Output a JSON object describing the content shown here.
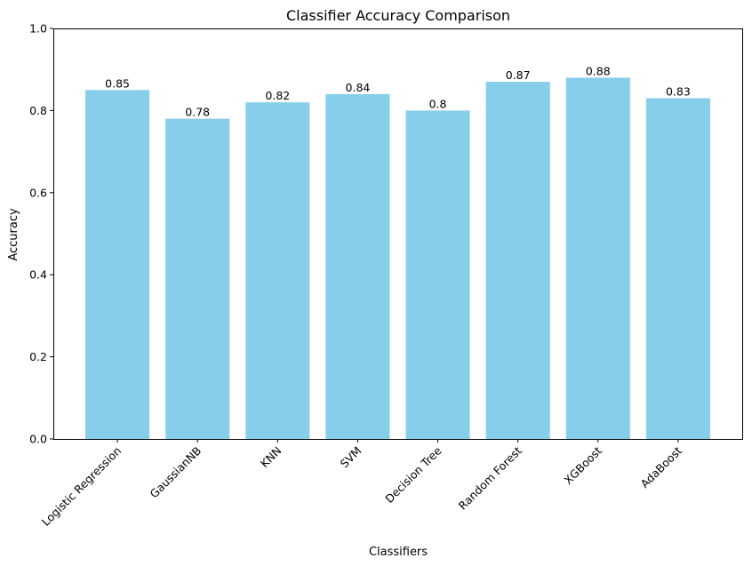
{
  "chart_data": {
    "type": "bar",
    "title": "Classifier Accuracy Comparison",
    "xlabel": "Classifiers",
    "ylabel": "Accuracy",
    "categories": [
      "Logistic Regression",
      "GaussianNB",
      "KNN",
      "SVM",
      "Decision Tree",
      "Random Forest",
      "XGBoost",
      "AdaBoost"
    ],
    "values": [
      0.85,
      0.78,
      0.82,
      0.84,
      0.8,
      0.87,
      0.88,
      0.83
    ],
    "data_labels": [
      "0.85",
      "0.78",
      "0.82",
      "0.84",
      "0.8",
      "0.87",
      "0.88",
      "0.83"
    ],
    "ylim": [
      0,
      1
    ],
    "yticks": [
      "0.0",
      "0.2",
      "0.4",
      "0.6",
      "0.8",
      "1.0"
    ],
    "grid": false,
    "bar_color": "#87CEEB"
  }
}
